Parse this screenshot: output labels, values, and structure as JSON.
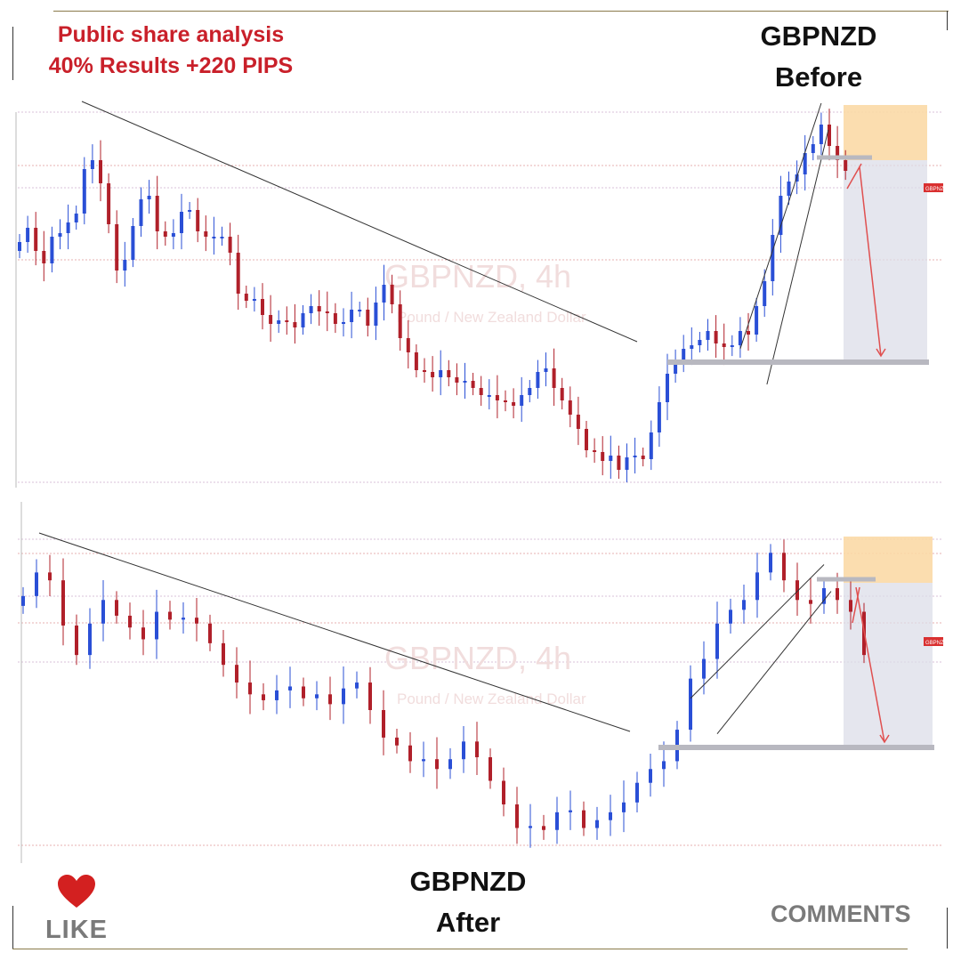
{
  "header": {
    "line1": "Public share analysis",
    "line2": "40% Results +220 PIPS"
  },
  "top_title": {
    "line1": "GBPNZD",
    "line2": "Before"
  },
  "bottom_title": {
    "line1": "GBPNZD",
    "line2": "After"
  },
  "watermark": {
    "symbol": "GBPNZD, 4h",
    "name": "Pound / New Zealand Dollar"
  },
  "price_tag": "GBPNZ",
  "footer": {
    "like_label": "LIKE",
    "like_icon": "heart-icon",
    "comments_label": "COMMENTS"
  },
  "colors": {
    "bull": "#2a4fd6",
    "bear": "#b0202a",
    "target_arrow": "#e05050",
    "entry_zone": "#fbd9a6",
    "short_zone": "#dcdde8",
    "header_text": "#c9202a"
  },
  "chart_data": [
    {
      "type": "candlestick",
      "panel": "before",
      "symbol": "GBPNZD",
      "timeframe": "4h",
      "closes": [
        0.52,
        0.6,
        0.47,
        0.4,
        0.55,
        0.57,
        0.63,
        0.68,
        0.93,
        0.98,
        0.85,
        0.62,
        0.36,
        0.42,
        0.61,
        0.76,
        0.78,
        0.58,
        0.55,
        0.57,
        0.69,
        0.7,
        0.58,
        0.55,
        0.55,
        0.55,
        0.46,
        0.23,
        0.19,
        0.2,
        0.11,
        0.06,
        0.08,
        0.07,
        0.04,
        0.12,
        0.16,
        0.13,
        0.12,
        0.06,
        0.07,
        0.14,
        0.14,
        0.05,
        0.18,
        0.28,
        0.17,
        -0.02,
        -0.1,
        -0.2,
        -0.21,
        -0.24,
        -0.2,
        -0.24,
        -0.27,
        -0.26,
        -0.3,
        -0.34,
        -0.34,
        -0.37,
        -0.38,
        -0.4,
        -0.34,
        -0.3,
        -0.21,
        -0.19,
        -0.3,
        -0.37,
        -0.45,
        -0.53,
        -0.65,
        -0.66,
        -0.71,
        -0.68,
        -0.76,
        -0.69,
        -0.68,
        -0.7,
        -0.55,
        -0.38,
        -0.22,
        -0.14,
        -0.08,
        -0.06,
        -0.03,
        0.02,
        -0.05,
        -0.07,
        -0.06,
        0.02,
        0.0,
        0.16,
        0.3,
        0.56,
        0.78,
        0.86,
        0.9,
        1.02,
        1.07,
        1.18,
        1.06,
        0.98,
        0.92
      ],
      "target_price": -0.73,
      "entry_zone": [
        0.88,
        1.07
      ],
      "annotations": [
        "descending trendline",
        "rising wedge",
        "short position",
        "target arrow"
      ]
    },
    {
      "type": "candlestick",
      "panel": "after",
      "symbol": "GBPNZD",
      "timeframe": "4h",
      "closes": [
        0.9,
        1.02,
        0.98,
        0.75,
        0.6,
        0.76,
        0.88,
        0.8,
        0.74,
        0.68,
        0.82,
        0.78,
        0.79,
        0.76,
        0.66,
        0.55,
        0.46,
        0.4,
        0.37,
        0.42,
        0.44,
        0.38,
        0.4,
        0.35,
        0.43,
        0.46,
        0.32,
        0.18,
        0.14,
        0.06,
        0.07,
        0.02,
        0.07,
        0.16,
        0.08,
        -0.04,
        -0.16,
        -0.28,
        -0.27,
        -0.29,
        -0.2,
        -0.19,
        -0.28,
        -0.24,
        -0.2,
        -0.15,
        -0.05,
        0.02,
        0.06,
        0.22,
        0.48,
        0.58,
        0.76,
        0.83,
        0.88,
        1.02,
        1.12,
        0.98,
        0.88,
        0.86,
        0.94,
        0.88,
        0.82,
        0.6
      ],
      "target_price": -0.47,
      "entry_zone": [
        0.84,
        1.05
      ],
      "annotations": [
        "descending trendline",
        "rising wedge",
        "short position",
        "target arrow"
      ]
    }
  ]
}
